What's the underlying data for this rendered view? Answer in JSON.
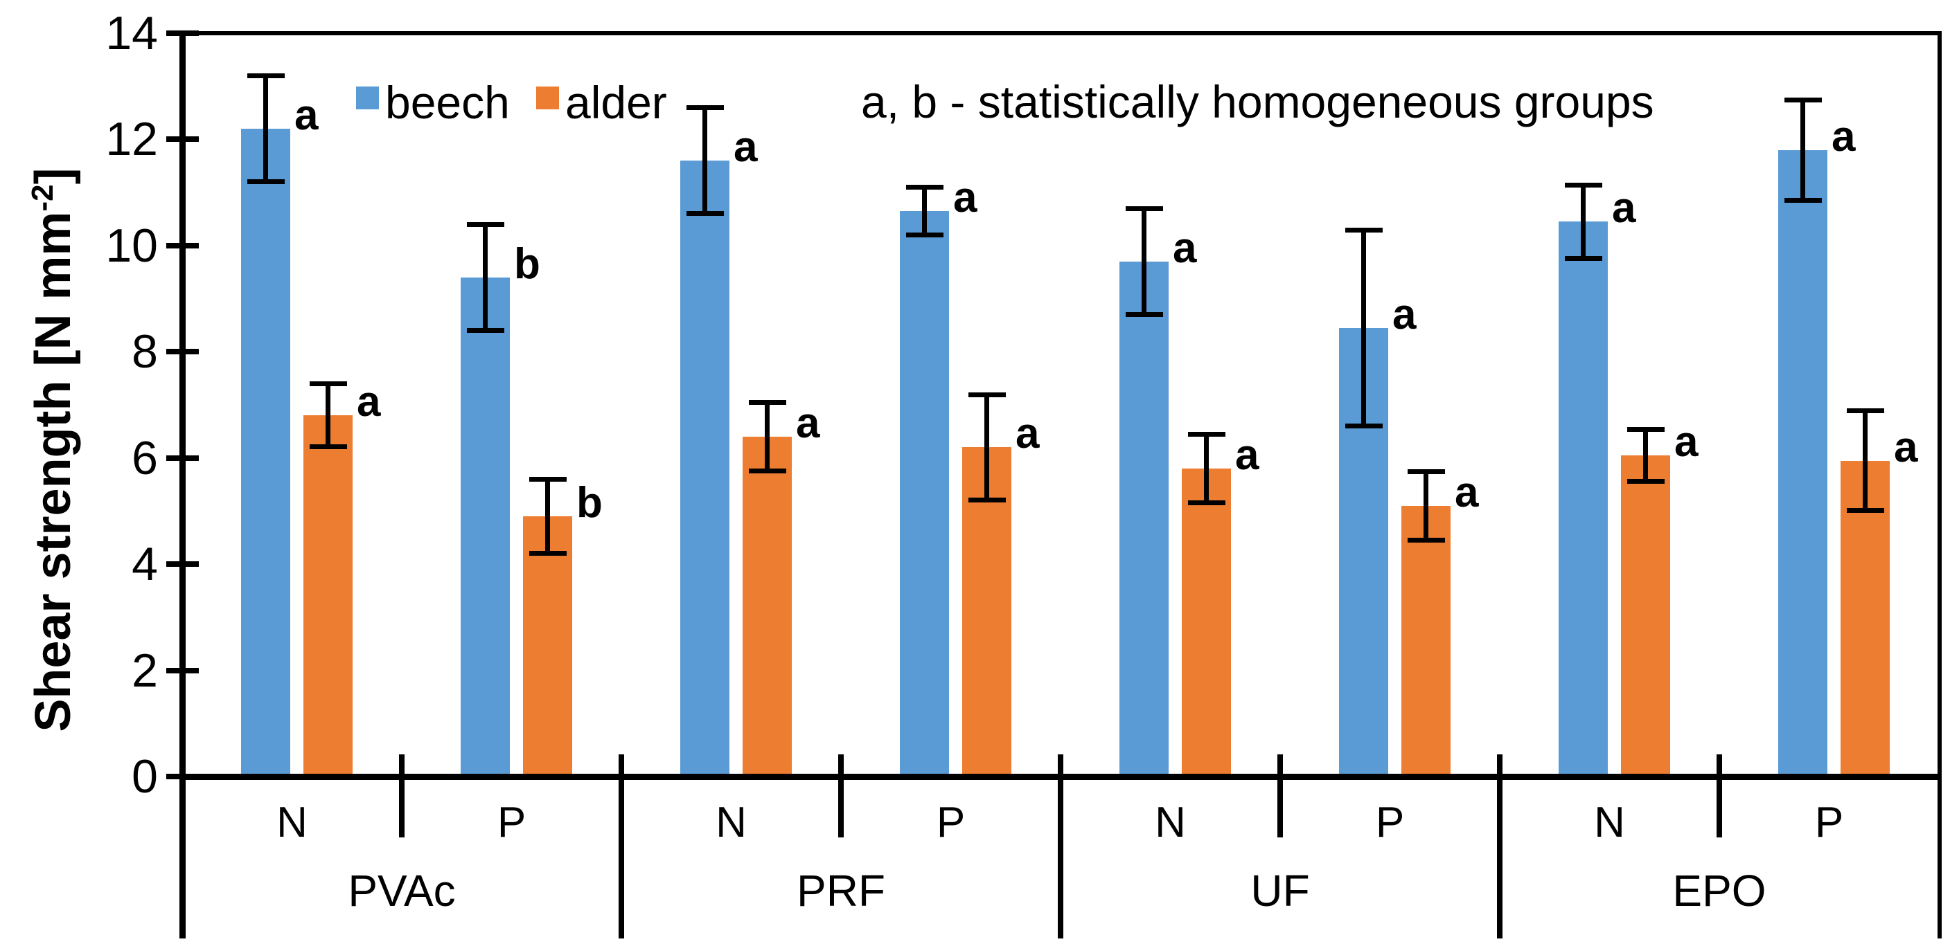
{
  "colors": {
    "beech": "#5B9BD5",
    "alder": "#ED7D31",
    "axis": "#000000",
    "background": "#FFFFFF"
  },
  "chart_data": {
    "type": "bar",
    "title": "",
    "ylabel": "Shear strength [N mm⁻²]",
    "ylabel_parts": {
      "prefix": "Shear strength [N mm",
      "superscript": "-2",
      "suffix": "]"
    },
    "ylim": [
      0,
      14
    ],
    "yticks": [
      0,
      2,
      4,
      6,
      8,
      10,
      12,
      14
    ],
    "grid": false,
    "legend_position": "top-left-inside",
    "annotation": "a, b - statistically homogeneous groups",
    "series": [
      {
        "name": "beech",
        "color": "#5B9BD5"
      },
      {
        "name": "alder",
        "color": "#ED7D31"
      }
    ],
    "groups": [
      {
        "adhesive": "PVAc",
        "conditions": [
          {
            "label": "N",
            "bars": [
              {
                "series": "beech",
                "value": 12.2,
                "error": 1.0,
                "letter": "a"
              },
              {
                "series": "alder",
                "value": 6.8,
                "error": 0.6,
                "letter": "a"
              }
            ]
          },
          {
            "label": "P",
            "bars": [
              {
                "series": "beech",
                "value": 9.4,
                "error": 1.0,
                "letter": "b"
              },
              {
                "series": "alder",
                "value": 4.9,
                "error": 0.7,
                "letter": "b"
              }
            ]
          }
        ]
      },
      {
        "adhesive": "PRF",
        "conditions": [
          {
            "label": "N",
            "bars": [
              {
                "series": "beech",
                "value": 11.6,
                "error": 1.0,
                "letter": "a"
              },
              {
                "series": "alder",
                "value": 6.4,
                "error": 0.65,
                "letter": "a"
              }
            ]
          },
          {
            "label": "P",
            "bars": [
              {
                "series": "beech",
                "value": 10.65,
                "error": 0.45,
                "letter": "a"
              },
              {
                "series": "alder",
                "value": 6.2,
                "error": 1.0,
                "letter": "a"
              }
            ]
          }
        ]
      },
      {
        "adhesive": "UF",
        "conditions": [
          {
            "label": "N",
            "bars": [
              {
                "series": "beech",
                "value": 9.7,
                "error": 1.0,
                "letter": "a"
              },
              {
                "series": "alder",
                "value": 5.8,
                "error": 0.65,
                "letter": "a"
              }
            ]
          },
          {
            "label": "P",
            "bars": [
              {
                "series": "beech",
                "value": 8.45,
                "error": 1.85,
                "letter": "a"
              },
              {
                "series": "alder",
                "value": 5.1,
                "error": 0.65,
                "letter": "a"
              }
            ]
          }
        ]
      },
      {
        "adhesive": "EPO",
        "conditions": [
          {
            "label": "N",
            "bars": [
              {
                "series": "beech",
                "value": 10.45,
                "error": 0.7,
                "letter": "a"
              },
              {
                "series": "alder",
                "value": 6.05,
                "error": 0.5,
                "letter": "a"
              }
            ]
          },
          {
            "label": "P",
            "bars": [
              {
                "series": "beech",
                "value": 11.8,
                "error": 0.95,
                "letter": "a"
              },
              {
                "series": "alder",
                "value": 5.95,
                "error": 0.95,
                "letter": "a"
              }
            ]
          }
        ]
      }
    ]
  }
}
